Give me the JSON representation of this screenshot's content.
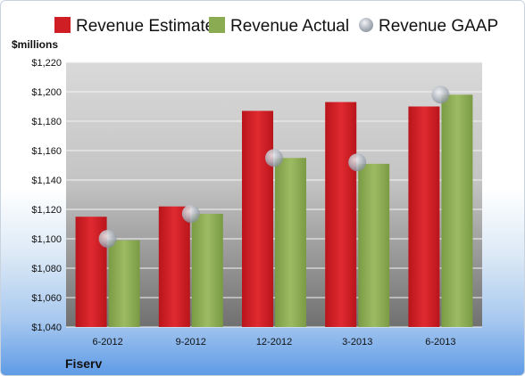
{
  "chart_data": {
    "type": "bar",
    "categories": [
      "6-2012",
      "9-2012",
      "12-2012",
      "3-2013",
      "6-2013"
    ],
    "series": [
      {
        "name": "Revenue Estimate",
        "values": [
          1115,
          1122,
          1187,
          1193,
          1190
        ],
        "color": "#cf1f25"
      },
      {
        "name": "Revenue Actual",
        "values": [
          1099,
          1117,
          1155,
          1151,
          1198
        ],
        "color": "#8bab52"
      },
      {
        "name": "Revenue GAAP",
        "values": [
          1100,
          1117,
          1155,
          1152,
          1198
        ],
        "color": "#a0a8b4",
        "marker": "circle"
      }
    ],
    "ylabel": "$millions",
    "ylim": [
      1040,
      1220
    ],
    "yticks": [
      1040,
      1060,
      1080,
      1100,
      1120,
      1140,
      1160,
      1180,
      1200,
      1220
    ],
    "ytick_labels": [
      "$1,040",
      "$1,060",
      "$1,080",
      "$1,100",
      "$1,120",
      "$1,140",
      "$1,160",
      "$1,180",
      "$1,200",
      "$1,220"
    ],
    "grid": true,
    "legend_position": "top",
    "company": "Fiserv"
  }
}
